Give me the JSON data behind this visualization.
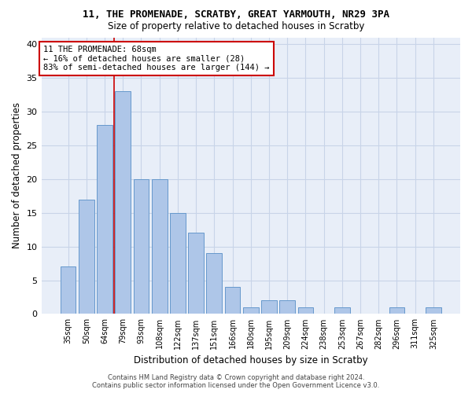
{
  "title1": "11, THE PROMENADE, SCRATBY, GREAT YARMOUTH, NR29 3PA",
  "title2": "Size of property relative to detached houses in Scratby",
  "xlabel": "Distribution of detached houses by size in Scratby",
  "ylabel": "Number of detached properties",
  "categories": [
    "35sqm",
    "50sqm",
    "64sqm",
    "79sqm",
    "93sqm",
    "108sqm",
    "122sqm",
    "137sqm",
    "151sqm",
    "166sqm",
    "180sqm",
    "195sqm",
    "209sqm",
    "224sqm",
    "238sqm",
    "253sqm",
    "267sqm",
    "282sqm",
    "296sqm",
    "311sqm",
    "325sqm"
  ],
  "values": [
    7,
    17,
    28,
    33,
    20,
    20,
    15,
    12,
    9,
    4,
    1,
    2,
    2,
    1,
    0,
    1,
    0,
    0,
    1,
    0,
    1
  ],
  "bar_color": "#aec6e8",
  "bar_edge_color": "#6699cc",
  "grid_color": "#c8d4e8",
  "background_color": "#e8eef8",
  "vline_color": "#cc0000",
  "annotation_line1": "11 THE PROMENADE: 68sqm",
  "annotation_line2": "← 16% of detached houses are smaller (28)",
  "annotation_line3": "83% of semi-detached houses are larger (144) →",
  "annotation_box_color": "#ffffff",
  "annotation_box_edge": "#cc0000",
  "footer1": "Contains HM Land Registry data © Crown copyright and database right 2024.",
  "footer2": "Contains public sector information licensed under the Open Government Licence v3.0.",
  "ylim": [
    0,
    41
  ],
  "yticks": [
    0,
    5,
    10,
    15,
    20,
    25,
    30,
    35,
    40
  ]
}
